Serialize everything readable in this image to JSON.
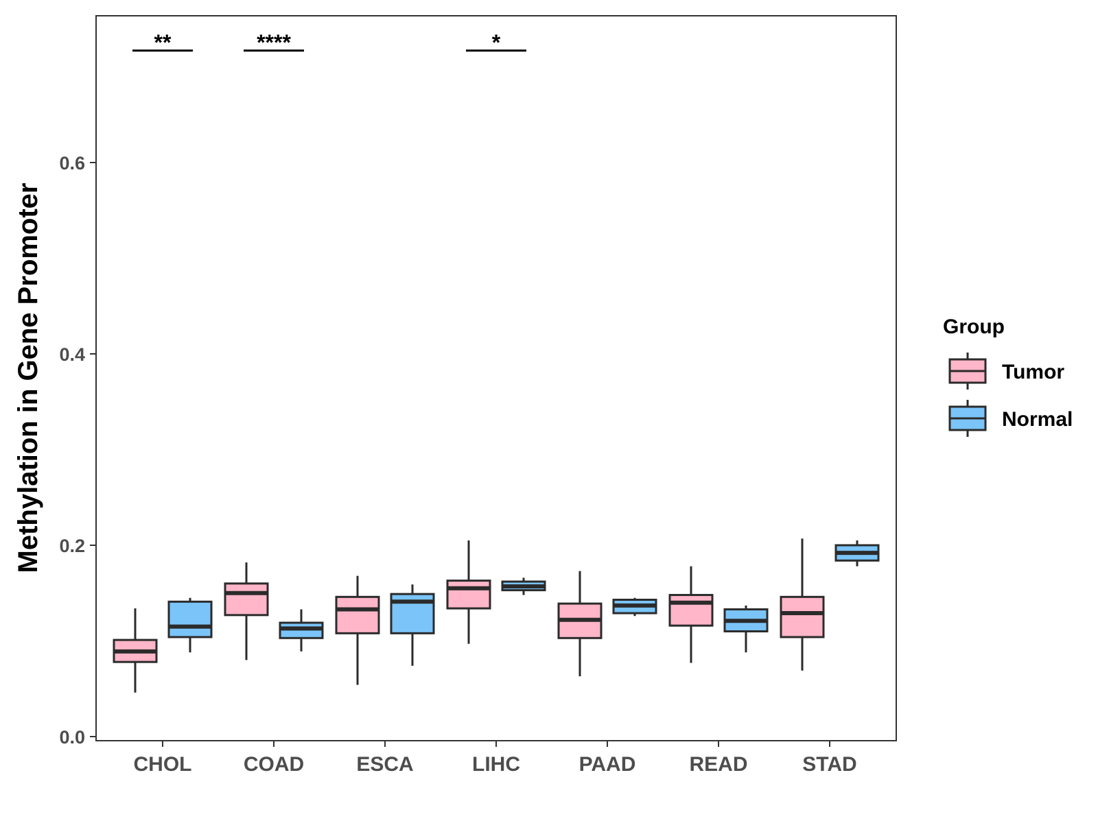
{
  "chart_data": {
    "type": "boxplot",
    "title": "",
    "xlabel": "",
    "ylabel": "Methylation in Gene Promoter",
    "ylim": [
      0,
      0.75
    ],
    "yticks": [
      0.0,
      0.2,
      0.4,
      0.6
    ],
    "ytick_labels": [
      "0.0",
      "0.2",
      "0.4",
      "0.6"
    ],
    "grid": false,
    "legend_position": "right",
    "legend": {
      "title": "Group",
      "entries": [
        {
          "name": "Tumor",
          "color": "#FFB6C8"
        },
        {
          "name": "Normal",
          "color": "#7AC4F9"
        }
      ]
    },
    "categories": [
      "CHOL",
      "COAD",
      "ESCA",
      "LIHC",
      "PAAD",
      "READ",
      "STAD"
    ],
    "series": [
      {
        "name": "Tumor",
        "color": "#FFB6C8",
        "boxes": [
          {
            "whisker_low": 0.046,
            "q1": 0.078,
            "median": 0.089,
            "q3": 0.101,
            "whisker_high": 0.134
          },
          {
            "whisker_low": 0.08,
            "q1": 0.127,
            "median": 0.15,
            "q3": 0.16,
            "whisker_high": 0.182
          },
          {
            "whisker_low": 0.054,
            "q1": 0.108,
            "median": 0.133,
            "q3": 0.146,
            "whisker_high": 0.168
          },
          {
            "whisker_low": 0.097,
            "q1": 0.134,
            "median": 0.155,
            "q3": 0.163,
            "whisker_high": 0.205
          },
          {
            "whisker_low": 0.063,
            "q1": 0.103,
            "median": 0.122,
            "q3": 0.139,
            "whisker_high": 0.173
          },
          {
            "whisker_low": 0.077,
            "q1": 0.116,
            "median": 0.14,
            "q3": 0.148,
            "whisker_high": 0.178
          },
          {
            "whisker_low": 0.069,
            "q1": 0.104,
            "median": 0.129,
            "q3": 0.146,
            "whisker_high": 0.207
          }
        ]
      },
      {
        "name": "Normal",
        "color": "#7AC4F9",
        "boxes": [
          {
            "whisker_low": 0.088,
            "q1": 0.104,
            "median": 0.115,
            "q3": 0.141,
            "whisker_high": 0.145
          },
          {
            "whisker_low": 0.089,
            "q1": 0.103,
            "median": 0.113,
            "q3": 0.119,
            "whisker_high": 0.133
          },
          {
            "whisker_low": 0.074,
            "q1": 0.108,
            "median": 0.141,
            "q3": 0.149,
            "whisker_high": 0.159
          },
          {
            "whisker_low": 0.148,
            "q1": 0.153,
            "median": 0.157,
            "q3": 0.162,
            "whisker_high": 0.166
          },
          {
            "whisker_low": 0.126,
            "q1": 0.129,
            "median": 0.137,
            "q3": 0.143,
            "whisker_high": 0.145
          },
          {
            "whisker_low": 0.088,
            "q1": 0.11,
            "median": 0.121,
            "q3": 0.133,
            "whisker_high": 0.137
          },
          {
            "whisker_low": 0.178,
            "q1": 0.184,
            "median": 0.192,
            "q3": 0.2,
            "whisker_high": 0.205
          }
        ]
      }
    ],
    "significance": [
      {
        "category": "CHOL",
        "label": "**",
        "y": 0.717
      },
      {
        "category": "COAD",
        "label": "****",
        "y": 0.717
      },
      {
        "category": "LIHC",
        "label": "*",
        "y": 0.717
      }
    ]
  },
  "colors": {
    "outline": "#2b2b2b",
    "axis": "#333333",
    "tumor": "#FFB6C8",
    "normal": "#7AC4F9"
  }
}
